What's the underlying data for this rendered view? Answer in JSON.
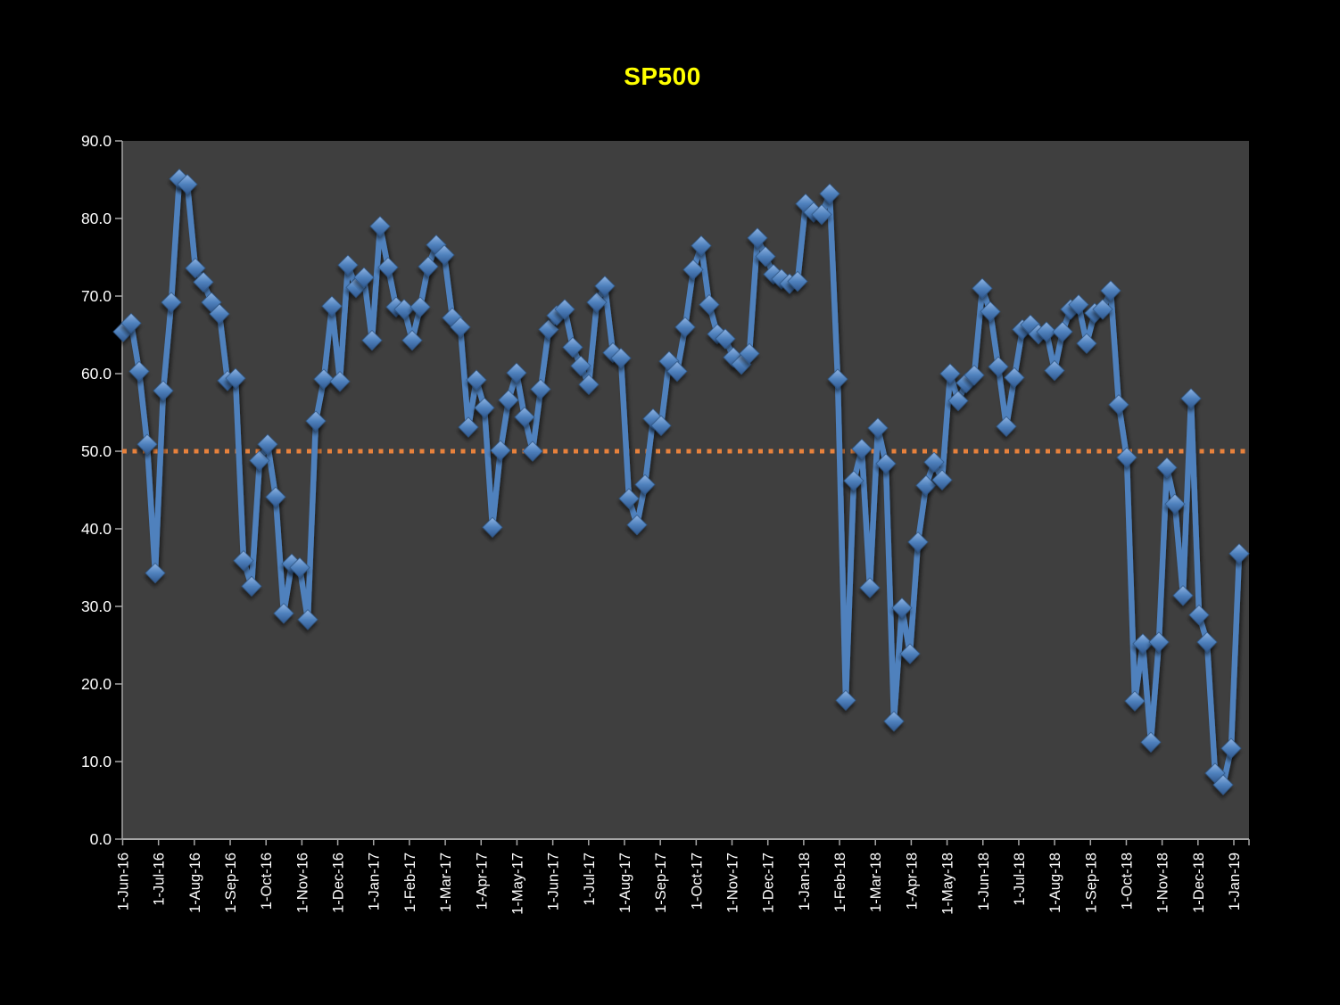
{
  "title": {
    "text": "SP500",
    "color": "#FFFF00"
  },
  "chart_data": {
    "type": "line",
    "title": "SP500",
    "xlabel": "",
    "ylabel": "",
    "ylim": [
      0,
      90
    ],
    "y_tick_labels": [
      "0.0",
      "10.0",
      "20.0",
      "30.0",
      "40.0",
      "50.0",
      "60.0",
      "70.0",
      "80.0",
      "90.0"
    ],
    "x_tick_labels": [
      "1-Jun-16",
      "1-Jul-16",
      "1-Aug-16",
      "1-Sep-16",
      "1-Oct-16",
      "1-Nov-16",
      "1-Dec-16",
      "1-Jan-17",
      "1-Feb-17",
      "1-Mar-17",
      "1-Apr-17",
      "1-May-17",
      "1-Jun-17",
      "1-Jul-17",
      "1-Aug-17",
      "1-Sep-17",
      "1-Oct-17",
      "1-Nov-17",
      "1-Dec-17",
      "1-Jan-18",
      "1-Feb-18",
      "1-Mar-18",
      "1-Apr-18",
      "1-May-18",
      "1-Jun-18",
      "1-Jul-18",
      "1-Aug-18",
      "1-Sep-18",
      "1-Oct-18",
      "1-Nov-18",
      "1-Dec-18",
      "1-Jan-19"
    ],
    "grid": "off",
    "legend": "none",
    "series": [
      {
        "name": "SP500",
        "marker": "diamond",
        "color": "#4F81BD",
        "values": [
          65.4,
          66.5,
          60.3,
          50.9,
          34.3,
          57.8,
          69.2,
          85.1,
          84.4,
          73.6,
          71.8,
          69.2,
          67.7,
          59.1,
          59.4,
          35.9,
          32.6,
          48.8,
          50.9,
          44.1,
          29.1,
          35.5,
          35.0,
          28.3,
          53.9,
          59.3,
          68.7,
          59.0,
          74.0,
          71.1,
          72.4,
          64.3,
          79.0,
          73.7,
          68.6,
          68.3,
          64.3,
          68.6,
          73.8,
          76.6,
          75.3,
          67.2,
          66.0,
          53.1,
          59.2,
          55.6,
          40.2,
          50.1,
          56.6,
          60.1,
          54.4,
          50.0,
          58.0,
          65.7,
          67.5,
          68.3,
          63.4,
          61.0,
          58.6,
          69.2,
          71.3,
          62.7,
          62.0,
          43.9,
          40.5,
          45.7,
          54.2,
          53.3,
          61.6,
          60.3,
          66.0,
          73.4,
          76.5,
          68.9,
          65.1,
          64.5,
          62.1,
          61.2,
          62.6,
          77.5,
          75.1,
          72.8,
          72.2,
          71.6,
          71.9,
          81.9,
          80.8,
          80.5,
          83.2,
          59.3,
          17.9,
          46.2,
          50.3,
          32.4,
          53.0,
          48.4,
          15.2,
          29.8,
          23.9,
          38.3,
          45.6,
          48.6,
          46.3,
          60.0,
          56.5,
          58.8,
          59.8,
          71.0,
          68.0,
          60.9,
          53.2,
          59.5,
          65.7,
          66.3,
          65.1,
          65.4,
          60.4,
          65.4,
          68.3,
          68.9,
          63.9,
          67.8,
          68.3,
          70.7,
          56.0,
          49.2,
          17.8,
          25.2,
          12.5,
          25.4,
          47.9,
          43.2,
          31.4,
          56.8,
          28.9,
          25.4,
          8.5,
          7.0,
          11.7,
          36.8
        ]
      }
    ],
    "reference_line": {
      "value": 50.0,
      "style": "dotted",
      "color": "#E8823C"
    },
    "colors": {
      "page_bg": "#000000",
      "plot_bg": "#3F3F3F",
      "axis": "#A6A6A6",
      "tick_label": "#FFFFFF",
      "marker_edge": "#2E5684",
      "marker_light": "#8FB4E3",
      "marker_dark": "#30588F"
    }
  }
}
